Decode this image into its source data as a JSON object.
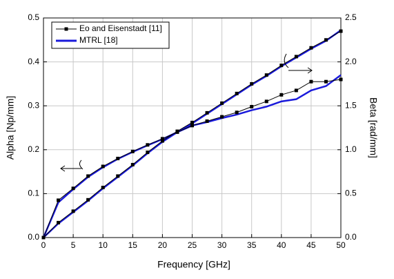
{
  "chart_data": {
    "type": "line",
    "xlabel": "Frequency [GHz]",
    "ylabel": "Alpha [Np/mm]",
    "y2label": "Beta [rad/mm]",
    "x": [
      0,
      2.5,
      5,
      7.5,
      10,
      12.5,
      15,
      17.5,
      20,
      22.5,
      25,
      27.5,
      30,
      32.5,
      35,
      37.5,
      40,
      42.5,
      45,
      47.5,
      50
    ],
    "series": [
      {
        "name": "Eo and Eisenstadt [11]",
        "color": "#000000",
        "marker": "square",
        "values": [
          0,
          0.085,
          0.112,
          0.14,
          0.162,
          0.18,
          0.196,
          0.211,
          0.225,
          0.24,
          0.255,
          0.265,
          0.275,
          0.285,
          0.298,
          0.31,
          0.325,
          0.335,
          0.355,
          0.355,
          0.36
        ],
        "y2_values": [
          0,
          0.17,
          0.3,
          0.43,
          0.57,
          0.7,
          0.83,
          0.97,
          1.1,
          1.21,
          1.31,
          1.42,
          1.53,
          1.64,
          1.75,
          1.85,
          1.96,
          2.06,
          2.16,
          2.25,
          2.35
        ]
      },
      {
        "name": "MTRL [18]",
        "color": "#1a1adb",
        "marker": "none",
        "values": [
          0,
          0.08,
          0.11,
          0.138,
          0.16,
          0.179,
          0.195,
          0.21,
          0.224,
          0.24,
          0.255,
          0.263,
          0.272,
          0.28,
          0.29,
          0.298,
          0.31,
          0.315,
          0.335,
          0.345,
          0.37
        ],
        "y2_values": [
          0,
          0.16,
          0.29,
          0.42,
          0.56,
          0.69,
          0.82,
          0.96,
          1.09,
          1.2,
          1.3,
          1.41,
          1.52,
          1.63,
          1.74,
          1.84,
          1.95,
          2.05,
          2.15,
          2.24,
          2.36
        ]
      }
    ],
    "xlim": [
      0,
      50
    ],
    "xticks": [
      0,
      5,
      10,
      15,
      20,
      25,
      30,
      35,
      40,
      45,
      50
    ],
    "ylim": [
      0,
      0.5
    ],
    "yticks": [
      {
        "value": 0,
        "label": "0.0"
      },
      0.1,
      0.2,
      0.3,
      0.4,
      0.5
    ],
    "y2lim": [
      0,
      2.5
    ],
    "y2ticks": [
      {
        "value": 0,
        "label": "0.0"
      },
      0.5,
      {
        "value": 1,
        "label": "1.0"
      },
      1.5,
      {
        "value": 2,
        "label": "2.0"
      },
      2.5
    ],
    "grid": true,
    "legend": "upper left"
  }
}
